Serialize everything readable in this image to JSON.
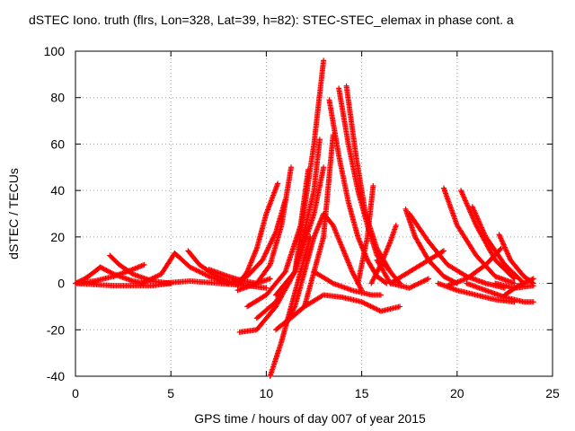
{
  "chart_data": {
    "type": "scatter",
    "title": "dSTEC Iono. truth (flrs, Lon=328, Lat=39, h=82): STEC-STEC_elemax in phase cont. a",
    "xlabel": "GPS time / hours of day 007 of year 2015",
    "ylabel": "dSTEC  / TECUs",
    "xlim": [
      0,
      25
    ],
    "ylim": [
      -40,
      100
    ],
    "xticks": [
      0,
      5,
      10,
      15,
      20,
      25
    ],
    "yticks": [
      -40,
      -20,
      0,
      20,
      40,
      60,
      80,
      100
    ],
    "grid": true,
    "marker": "+",
    "color": "#ff0000",
    "series": [
      {
        "x": [
          0.0,
          0.5,
          1.0,
          1.3
        ],
        "y": [
          0,
          2,
          5,
          7
        ]
      },
      {
        "x": [
          1.3,
          2.0,
          3.0,
          3.6
        ],
        "y": [
          7,
          4,
          1,
          0
        ]
      },
      {
        "x": [
          0.0,
          1.0,
          2.0,
          3.0,
          3.6
        ],
        "y": [
          0,
          1,
          3,
          6,
          8
        ]
      },
      {
        "x": [
          1.8,
          2.3,
          3.0,
          4.0,
          5.0
        ],
        "y": [
          12,
          8,
          4,
          1,
          0
        ]
      },
      {
        "x": [
          0.0,
          2.0,
          4.0,
          5.0
        ],
        "y": [
          0,
          -1,
          -1,
          0
        ]
      },
      {
        "x": [
          3.5,
          4.5,
          5.2
        ],
        "y": [
          0,
          4,
          13
        ]
      },
      {
        "x": [
          5.2,
          6.0,
          7.0,
          8.0
        ],
        "y": [
          13,
          7,
          3,
          0
        ]
      },
      {
        "x": [
          5.9,
          6.5,
          7.2,
          8.0,
          8.8
        ],
        "y": [
          14,
          8,
          4,
          1,
          0
        ]
      },
      {
        "x": [
          4.5,
          6.0,
          7.5,
          9.0,
          10.0
        ],
        "y": [
          0,
          1,
          0,
          -1,
          -2
        ]
      },
      {
        "x": [
          7.0,
          8.0,
          8.8,
          9.5,
          10.2
        ],
        "y": [
          6,
          3,
          1,
          0,
          2
        ]
      },
      {
        "x": [
          8.5,
          9.0,
          9.5,
          10.0,
          10.6
        ],
        "y": [
          -1,
          5,
          15,
          30,
          43
        ]
      },
      {
        "x": [
          8.2,
          9.0,
          9.8,
          10.5,
          11.0
        ],
        "y": [
          0,
          3,
          10,
          22,
          36
        ]
      },
      {
        "x": [
          8.5,
          9.5,
          10.2,
          10.8,
          11.3
        ],
        "y": [
          -3,
          0,
          8,
          25,
          50
        ]
      },
      {
        "x": [
          9.0,
          10.0,
          11.0,
          11.8,
          12.2
        ],
        "y": [
          -10,
          -5,
          5,
          25,
          49
        ]
      },
      {
        "x": [
          9.5,
          10.5,
          11.5,
          12.5,
          12.8
        ],
        "y": [
          -15,
          -8,
          5,
          40,
          62
        ]
      },
      {
        "x": [
          10.2,
          10.8,
          11.3,
          11.8,
          12.3
        ],
        "y": [
          -40,
          -25,
          -10,
          5,
          20
        ]
      },
      {
        "x": [
          8.6,
          9.5,
          10.5,
          11.5,
          12.5,
          13.0
        ],
        "y": [
          -21,
          -20,
          -10,
          5,
          30,
          50
        ]
      },
      {
        "x": [
          10.5,
          11.5,
          12.5,
          13.0
        ],
        "y": [
          -5,
          5,
          60,
          96
        ]
      },
      {
        "x": [
          11.0,
          12.0,
          13.0,
          13.5
        ],
        "y": [
          -17,
          -10,
          20,
          64
        ]
      },
      {
        "x": [
          11.0,
          11.5,
          12.0,
          12.5,
          13.0,
          13.5,
          14.0,
          14.5,
          15.0
        ],
        "y": [
          -18,
          -10,
          5,
          20,
          30,
          25,
          15,
          5,
          -3
        ]
      },
      {
        "x": [
          13.3,
          13.8,
          14.3,
          14.8,
          15.3,
          15.8,
          16.3
        ],
        "y": [
          79,
          55,
          35,
          20,
          10,
          3,
          0
        ]
      },
      {
        "x": [
          13.8,
          14.3,
          14.8,
          15.3,
          15.8,
          16.5,
          17.0
        ],
        "y": [
          84,
          60,
          40,
          25,
          12,
          5,
          0
        ]
      },
      {
        "x": [
          14.2,
          14.7,
          15.2,
          15.8,
          16.5
        ],
        "y": [
          85,
          55,
          30,
          15,
          5
        ]
      },
      {
        "x": [
          10.5,
          12.0,
          13.0,
          14.0,
          15.0,
          16.0,
          17.0
        ],
        "y": [
          -20,
          -10,
          -5,
          -6,
          -8,
          -12,
          -10
        ]
      },
      {
        "x": [
          12.5,
          13.5,
          14.5,
          15.5,
          16.0
        ],
        "y": [
          5,
          0,
          -3,
          -5,
          -5
        ]
      },
      {
        "x": [
          15.5,
          16.0,
          16.5,
          16.8
        ],
        "y": [
          0,
          8,
          18,
          25
        ]
      },
      {
        "x": [
          14.8,
          15.3,
          15.6
        ],
        "y": [
          0,
          20,
          42
        ]
      },
      {
        "x": [
          15.8,
          16.5,
          17.5,
          18.5
        ],
        "y": [
          10,
          0,
          -2,
          2
        ]
      },
      {
        "x": [
          17.3,
          17.8,
          18.5,
          19.3,
          20.0
        ],
        "y": [
          32,
          20,
          10,
          3,
          0
        ]
      },
      {
        "x": [
          17.5,
          18.5,
          19.5,
          20.5,
          21.5,
          22.5
        ],
        "y": [
          30,
          18,
          8,
          3,
          0,
          -2
        ]
      },
      {
        "x": [
          16.5,
          17.5,
          18.5,
          19.3
        ],
        "y": [
          0,
          5,
          10,
          14
        ]
      },
      {
        "x": [
          19.3,
          20.0,
          21.0,
          22.0,
          23.0
        ],
        "y": [
          41,
          25,
          12,
          3,
          0
        ]
      },
      {
        "x": [
          20.2,
          21.0,
          22.0,
          23.0
        ],
        "y": [
          40,
          25,
          10,
          2
        ]
      },
      {
        "x": [
          20.8,
          21.5,
          22.5,
          23.5
        ],
        "y": [
          33,
          20,
          8,
          0
        ]
      },
      {
        "x": [
          22.2,
          22.8,
          23.5,
          24.0
        ],
        "y": [
          21,
          10,
          3,
          0
        ]
      },
      {
        "x": [
          19.0,
          20.0,
          21.0,
          22.0,
          23.0
        ],
        "y": [
          0,
          -3,
          -5,
          -7,
          -8
        ]
      },
      {
        "x": [
          19.5,
          20.5,
          21.5,
          22.3
        ],
        "y": [
          -1,
          2,
          8,
          15
        ]
      },
      {
        "x": [
          20.5,
          21.5,
          22.5,
          23.5,
          24.0
        ],
        "y": [
          0,
          -3,
          -6,
          -8,
          -8
        ]
      },
      {
        "x": [
          22.0,
          23.0,
          24.0
        ],
        "y": [
          0,
          -2,
          -1
        ]
      },
      {
        "x": [
          22.5,
          23.2,
          24.0
        ],
        "y": [
          -5,
          -1,
          2
        ]
      }
    ]
  }
}
